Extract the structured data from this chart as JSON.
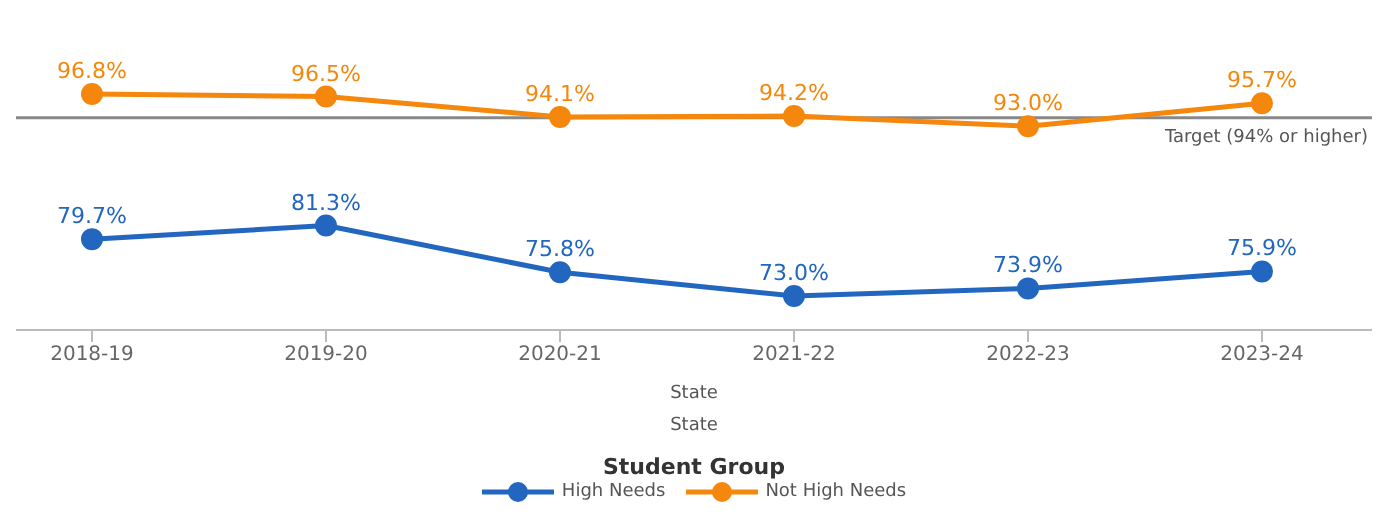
{
  "chart_data": {
    "type": "line",
    "categories": [
      "2018-19",
      "2019-20",
      "2020-21",
      "2021-22",
      "2022-23",
      "2023-24"
    ],
    "series": [
      {
        "name": "High Needs",
        "color": "#2266c0",
        "values": [
          79.7,
          81.3,
          75.8,
          73.0,
          73.9,
          75.9
        ],
        "value_labels": [
          "79.7%",
          "81.3%",
          "75.8%",
          "73.0%",
          "73.9%",
          "75.9%"
        ]
      },
      {
        "name": "Not High Needs",
        "color": "#f4870c",
        "values": [
          96.8,
          96.5,
          94.1,
          94.2,
          93.0,
          95.7
        ],
        "value_labels": [
          "96.8%",
          "96.5%",
          "94.1%",
          "94.2%",
          "93.0%",
          "95.7%"
        ]
      }
    ],
    "tick_labels": "x",
    "xlabel": "State",
    "annotations": [
      "State"
    ],
    "ref_lines": [
      {
        "axis": "y",
        "value": 94,
        "label": "Target (94% or higher)",
        "color": "#888888"
      }
    ],
    "legend_title": "Student Group",
    "legend": "bottom",
    "marker": "circle",
    "line_style": "solid"
  }
}
